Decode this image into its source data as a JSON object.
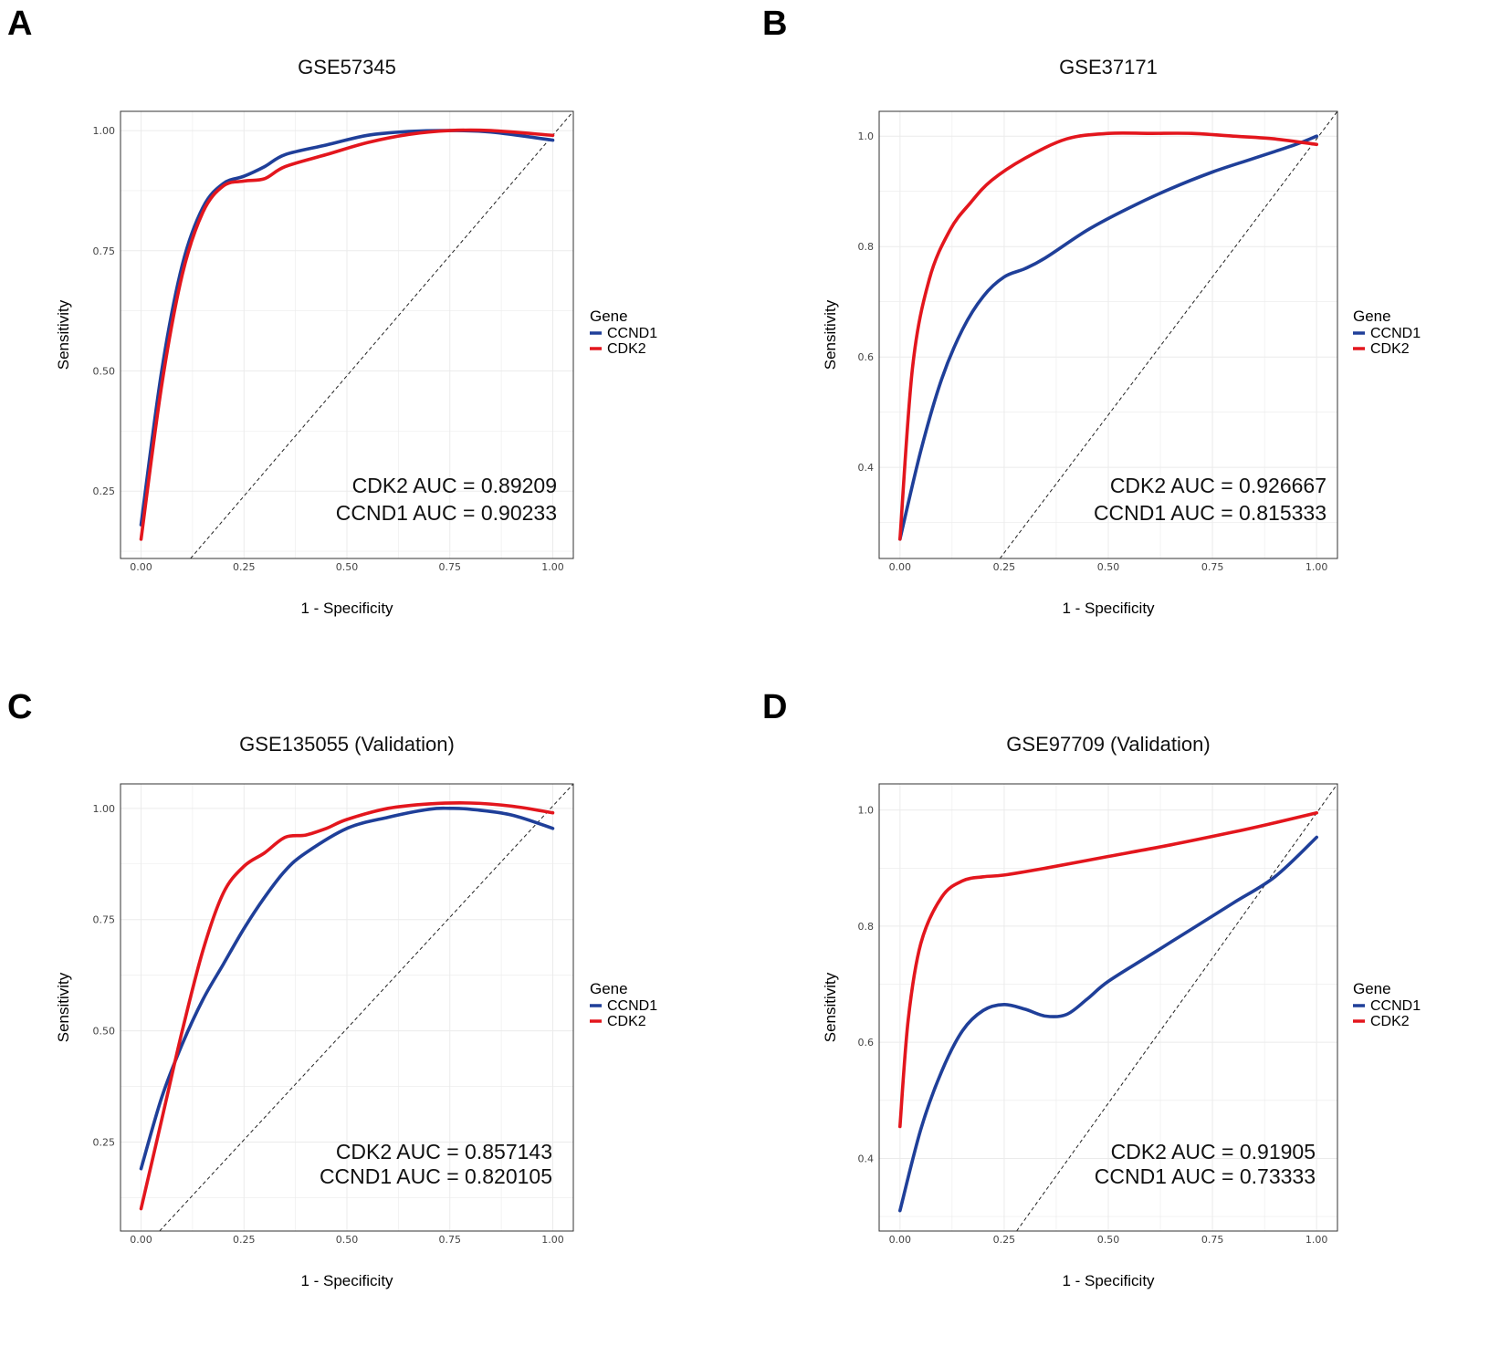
{
  "colors": {
    "CCND1": "#1f3f99",
    "CDK2": "#e3161d",
    "grid": "#ebebeb",
    "diag": "#222222"
  },
  "chart_data": [
    {
      "type": "line",
      "panel": "A",
      "title": "GSE57345",
      "xlabel": "1 - Specificity",
      "ylabel": "Sensitivity",
      "xlim": [
        -0.05,
        1.05
      ],
      "ylim": [
        0.11,
        1.04
      ],
      "xticks": [
        0,
        0.25,
        0.5,
        0.75,
        1
      ],
      "xtick_labels": [
        "0.00",
        "0.25",
        "0.50",
        "0.75",
        "1.00"
      ],
      "yticks": [
        0.25,
        0.5,
        0.75,
        1
      ],
      "ytick_labels": [
        "0.25",
        "0.50",
        "0.75",
        "1.00"
      ],
      "legend": {
        "title": "Gene",
        "entries": [
          "CCND1",
          "CDK2"
        ],
        "position": "right"
      },
      "auc_lines": [
        "CDK2 AUC = 0.89209",
        "CCND1 AUC = 0.90233"
      ],
      "series": [
        {
          "name": "CCND1",
          "x": [
            0,
            0.05,
            0.1,
            0.15,
            0.2,
            0.25,
            0.3,
            0.35,
            0.45,
            0.55,
            0.65,
            0.75,
            0.85,
            1.0
          ],
          "y": [
            0.18,
            0.5,
            0.72,
            0.84,
            0.89,
            0.905,
            0.925,
            0.95,
            0.97,
            0.99,
            0.998,
            1.0,
            0.997,
            0.98
          ]
        },
        {
          "name": "CDK2",
          "x": [
            0,
            0.05,
            0.1,
            0.15,
            0.2,
            0.25,
            0.3,
            0.35,
            0.45,
            0.55,
            0.65,
            0.75,
            0.85,
            1.0
          ],
          "y": [
            0.15,
            0.47,
            0.7,
            0.83,
            0.885,
            0.895,
            0.9,
            0.925,
            0.95,
            0.975,
            0.992,
            1.0,
            1.0,
            0.99
          ]
        }
      ]
    },
    {
      "type": "line",
      "panel": "B",
      "title": "GSE37171",
      "xlabel": "1 - Specificity",
      "ylabel": "Sensitivity",
      "xlim": [
        -0.05,
        1.05
      ],
      "ylim": [
        0.235,
        1.045
      ],
      "xticks": [
        0,
        0.25,
        0.5,
        0.75,
        1
      ],
      "xtick_labels": [
        "0.00",
        "0.25",
        "0.50",
        "0.75",
        "1.00"
      ],
      "yticks": [
        0.4,
        0.6,
        0.8,
        1
      ],
      "ytick_labels": [
        "0.4",
        "0.6",
        "0.8",
        "1.0"
      ],
      "legend": {
        "title": "Gene",
        "entries": [
          "CCND1",
          "CDK2"
        ],
        "position": "right"
      },
      "auc_lines": [
        "CDK2 AUC = 0.926667",
        "CCND1 AUC = 0.815333"
      ],
      "series": [
        {
          "name": "CCND1",
          "x": [
            0,
            0.05,
            0.1,
            0.15,
            0.2,
            0.25,
            0.3,
            0.35,
            0.45,
            0.55,
            0.65,
            0.75,
            0.85,
            0.95,
            1.0
          ],
          "y": [
            0.27,
            0.43,
            0.56,
            0.65,
            0.71,
            0.745,
            0.76,
            0.78,
            0.83,
            0.87,
            0.905,
            0.935,
            0.96,
            0.985,
            1.0
          ]
        },
        {
          "name": "CDK2",
          "x": [
            0,
            0.03,
            0.07,
            0.12,
            0.17,
            0.22,
            0.3,
            0.4,
            0.5,
            0.6,
            0.7,
            0.8,
            0.9,
            1.0
          ],
          "y": [
            0.27,
            0.58,
            0.74,
            0.83,
            0.88,
            0.92,
            0.96,
            0.995,
            1.005,
            1.005,
            1.005,
            1.0,
            0.995,
            0.985
          ]
        }
      ]
    },
    {
      "type": "line",
      "panel": "C",
      "title": "GSE135055 (Validation)",
      "xlabel": "1 - Specificity",
      "ylabel": "Sensitivity",
      "xlim": [
        -0.05,
        1.05
      ],
      "ylim": [
        0.05,
        1.055
      ],
      "xticks": [
        0,
        0.25,
        0.5,
        0.75,
        1
      ],
      "xtick_labels": [
        "0.00",
        "0.25",
        "0.50",
        "0.75",
        "1.00"
      ],
      "yticks": [
        0.25,
        0.5,
        0.75,
        1
      ],
      "ytick_labels": [
        "0.25",
        "0.50",
        "0.75",
        "1.00"
      ],
      "legend": {
        "title": "Gene",
        "entries": [
          "CCND1",
          "CDK2"
        ],
        "position": "right"
      },
      "auc_lines": [
        "CDK2 AUC = 0.857143",
        "CCND1 AUC = 0.820105"
      ],
      "series": [
        {
          "name": "CCND1",
          "x": [
            0,
            0.05,
            0.1,
            0.15,
            0.2,
            0.25,
            0.3,
            0.35,
            0.4,
            0.5,
            0.6,
            0.7,
            0.75,
            0.8,
            0.9,
            1.0
          ],
          "y": [
            0.19,
            0.35,
            0.47,
            0.57,
            0.65,
            0.73,
            0.8,
            0.86,
            0.9,
            0.955,
            0.98,
            0.998,
            1.0,
            0.998,
            0.985,
            0.955
          ]
        },
        {
          "name": "CDK2",
          "x": [
            0,
            0.05,
            0.1,
            0.15,
            0.2,
            0.25,
            0.3,
            0.35,
            0.4,
            0.45,
            0.5,
            0.6,
            0.7,
            0.8,
            0.9,
            1.0
          ],
          "y": [
            0.1,
            0.3,
            0.5,
            0.68,
            0.81,
            0.87,
            0.9,
            0.935,
            0.94,
            0.955,
            0.975,
            1.0,
            1.01,
            1.012,
            1.005,
            0.99
          ]
        }
      ]
    },
    {
      "type": "line",
      "panel": "D",
      "title": "GSE97709 (Validation)",
      "xlabel": "1 - Specificity",
      "ylabel": "Sensitivity",
      "xlim": [
        -0.05,
        1.05
      ],
      "ylim": [
        0.275,
        1.045
      ],
      "xticks": [
        0,
        0.25,
        0.5,
        0.75,
        1
      ],
      "xtick_labels": [
        "0.00",
        "0.25",
        "0.50",
        "0.75",
        "1.00"
      ],
      "yticks": [
        0.4,
        0.6,
        0.8,
        1
      ],
      "ytick_labels": [
        "0.4",
        "0.6",
        "0.8",
        "1.0"
      ],
      "legend": {
        "title": "Gene",
        "entries": [
          "CCND1",
          "CDK2"
        ],
        "position": "right"
      },
      "auc_lines": [
        "CDK2 AUC = 0.91905",
        "CCND1 AUC = 0.73333"
      ],
      "series": [
        {
          "name": "CCND1",
          "x": [
            0,
            0.05,
            0.1,
            0.15,
            0.2,
            0.25,
            0.3,
            0.35,
            0.4,
            0.45,
            0.5,
            0.6,
            0.7,
            0.8,
            0.9,
            1.0
          ],
          "y": [
            0.31,
            0.45,
            0.55,
            0.62,
            0.655,
            0.665,
            0.657,
            0.645,
            0.648,
            0.675,
            0.705,
            0.75,
            0.795,
            0.84,
            0.885,
            0.953
          ]
        },
        {
          "name": "CDK2",
          "x": [
            0,
            0.02,
            0.05,
            0.1,
            0.15,
            0.2,
            0.25,
            0.35,
            0.5,
            0.65,
            0.8,
            0.9,
            1.0
          ],
          "y": [
            0.455,
            0.64,
            0.77,
            0.85,
            0.878,
            0.885,
            0.888,
            0.9,
            0.92,
            0.94,
            0.962,
            0.978,
            0.995
          ]
        }
      ]
    }
  ]
}
